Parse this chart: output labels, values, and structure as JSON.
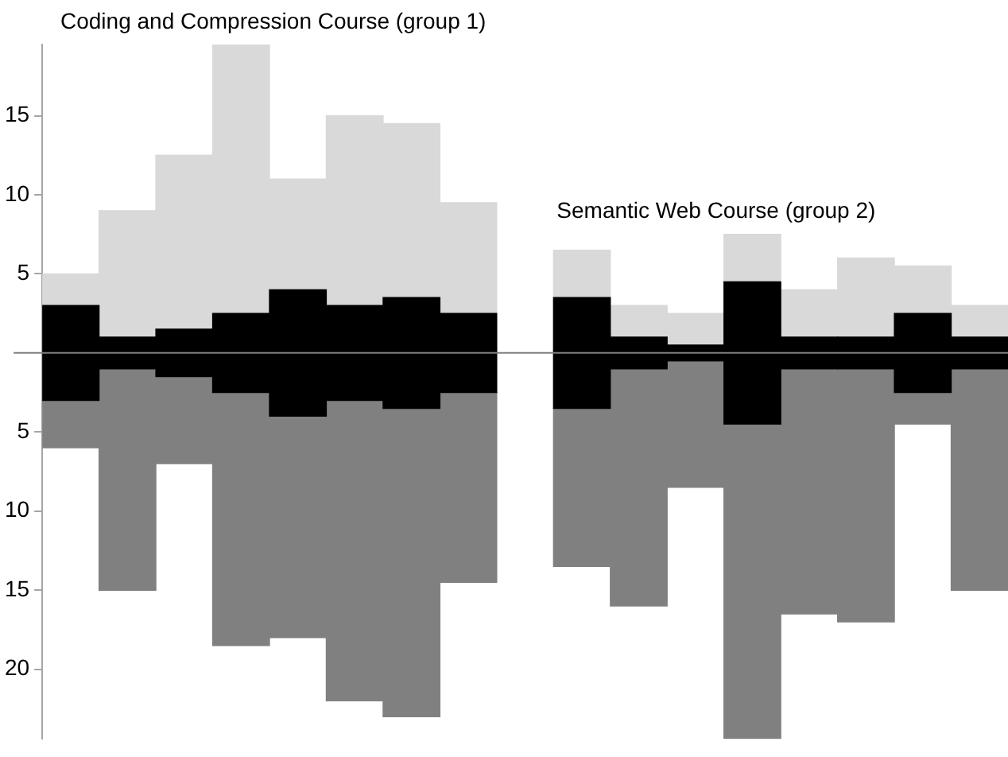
{
  "chart_data": {
    "type": "bar",
    "title": "Coding and Compression Course (group 1)",
    "annotations": [
      "Semantic Web Course (group 2)"
    ],
    "categories": [
      null,
      null,
      null,
      null,
      null,
      null,
      null,
      null,
      null,
      null,
      null,
      null,
      null,
      null,
      null,
      null,
      null
    ],
    "stacked": true,
    "series": [
      {
        "color": "#000000",
        "values": [
          3,
          1,
          1.5,
          2.5,
          4,
          3,
          3.5,
          2.5,
          null,
          3.5,
          1,
          0.5,
          4.5,
          1,
          1,
          2.5,
          1
        ]
      },
      {
        "color": "#d9d9d9",
        "values": [
          2,
          8,
          11,
          17,
          7,
          12,
          11,
          7,
          null,
          3,
          2,
          2,
          3,
          3,
          5,
          3,
          2
        ]
      },
      {
        "color": "#000000",
        "values": [
          -3,
          -1,
          -1.5,
          -2.5,
          -4,
          -3,
          -3.5,
          -2.5,
          null,
          -3.5,
          -1,
          -0.5,
          -4.5,
          -1,
          -1,
          -2.5,
          -1
        ]
      },
      {
        "color": "#808080",
        "values": [
          -3,
          -14,
          -5.5,
          -16,
          -14,
          -19,
          -19.5,
          -12,
          null,
          -10,
          -15,
          -8,
          -19.9,
          -15.5,
          -16,
          -2,
          -14
        ]
      }
    ],
    "ylim": [
      -24.4,
      19.5
    ],
    "yticks": [
      {
        "value": -20,
        "label": "20"
      },
      {
        "value": -15,
        "label": "15"
      },
      {
        "value": -10,
        "label": "10"
      },
      {
        "value": -5,
        "label": "5"
      },
      5,
      10,
      15
    ],
    "ref_lines": [
      {
        "axis": "y",
        "value": 0,
        "color": "#7f7f7f"
      }
    ],
    "tick_labels": "y",
    "grid": false,
    "legend": false
  }
}
